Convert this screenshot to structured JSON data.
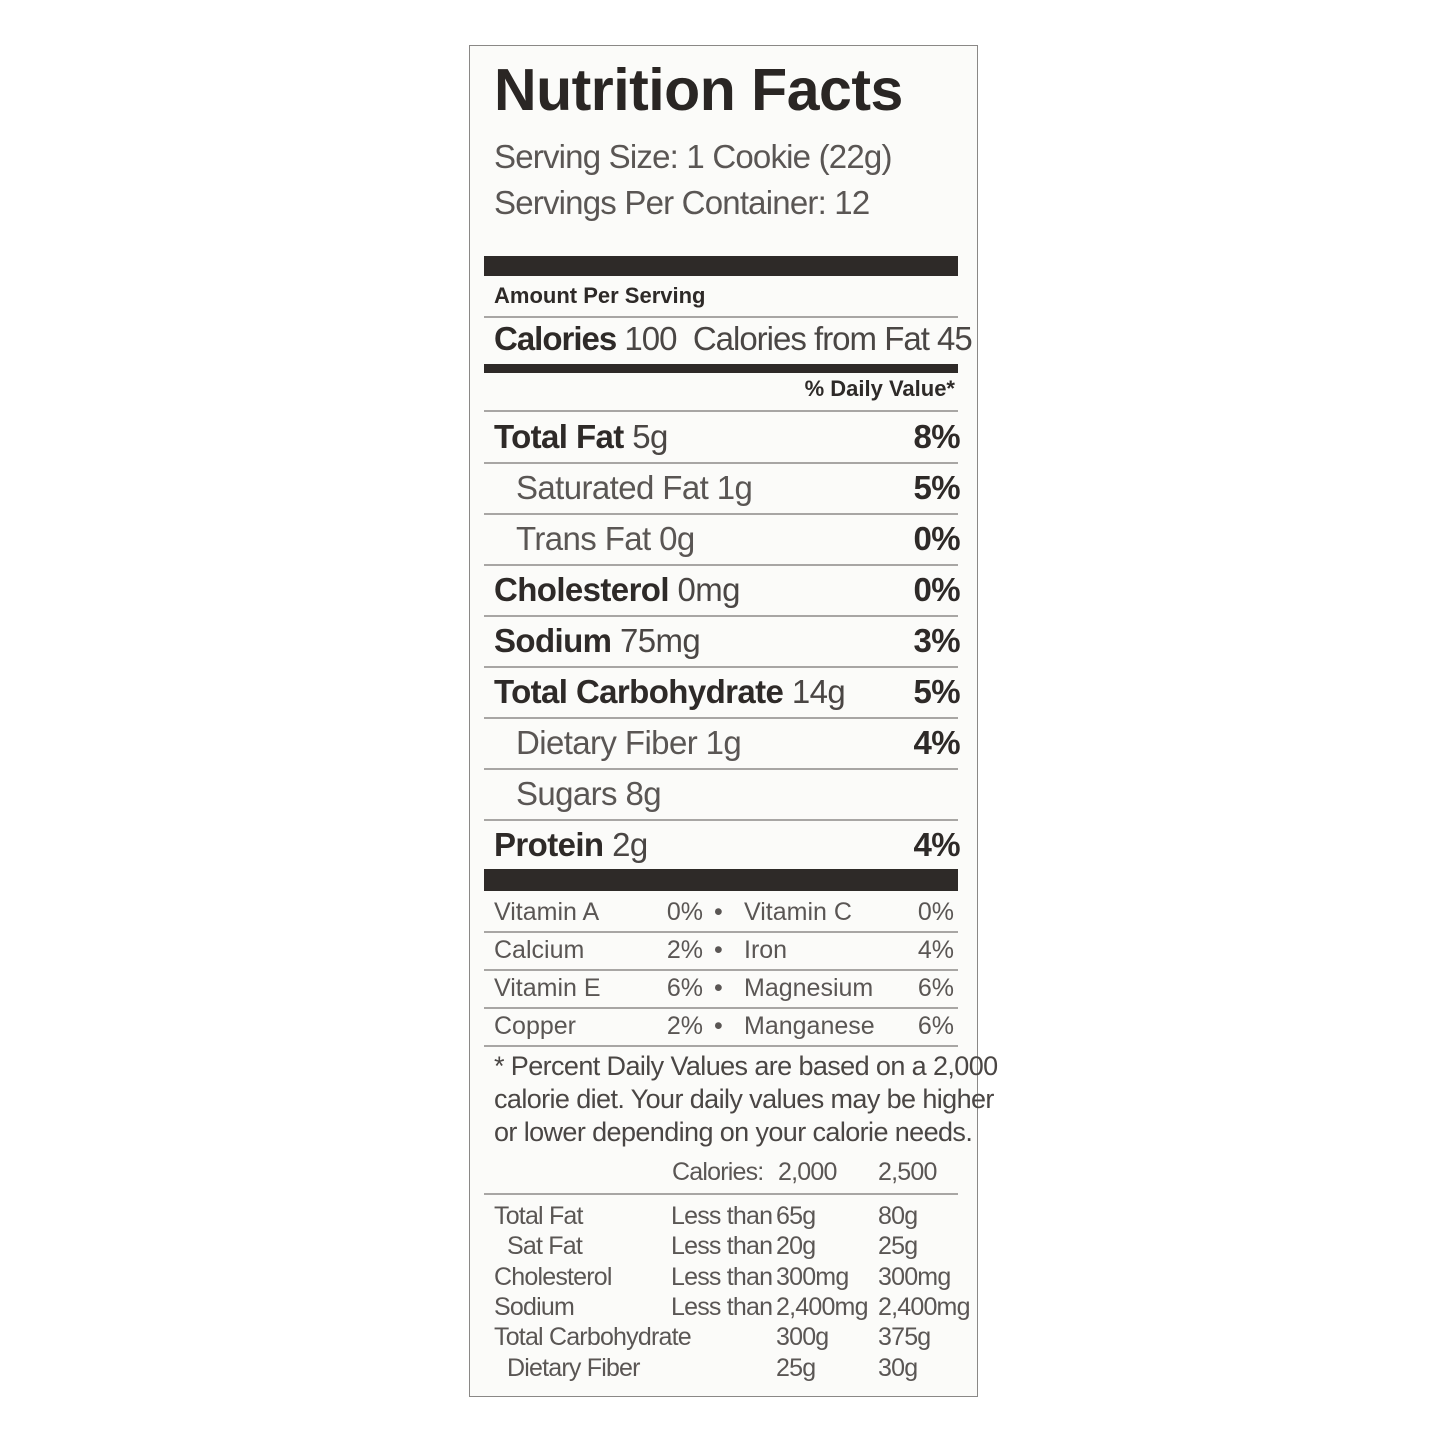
{
  "title": "Nutrition Facts",
  "serving_size": "Serving Size: 1 Cookie (22g)",
  "servings_per_container": "Servings Per Container: 12",
  "amount_per_serving": "Amount Per Serving",
  "calories": {
    "label": "Calories",
    "value": "100",
    "from_fat": "Calories from Fat 45"
  },
  "daily_value_header": "% Daily Value*",
  "nutrients": [
    {
      "name": "Total Fat",
      "amount": "5g",
      "dv": "8%",
      "bold": true
    },
    {
      "name": "Saturated Fat",
      "amount": "1g",
      "dv": "5%",
      "bold": false
    },
    {
      "name": "Trans Fat",
      "amount": "0g",
      "dv": "0%",
      "bold": false
    },
    {
      "name": "Cholesterol",
      "amount": "0mg",
      "dv": "0%",
      "bold": true
    },
    {
      "name": "Sodium",
      "amount": "75mg",
      "dv": "3%",
      "bold": true
    },
    {
      "name": "Total Carbohydrate",
      "amount": "14g",
      "dv": "5%",
      "bold": true
    },
    {
      "name": "Dietary Fiber",
      "amount": "1g",
      "dv": "4%",
      "bold": false
    },
    {
      "name": "Sugars",
      "amount": "8g",
      "dv": "",
      "bold": false
    },
    {
      "name": "Protein",
      "amount": "2g",
      "dv": "4%",
      "bold": true
    }
  ],
  "vitamins": [
    {
      "a": "Vitamin A",
      "a_pct": "0%",
      "b": "Vitamin C",
      "b_pct": "0%"
    },
    {
      "a": "Calcium",
      "a_pct": "2%",
      "b": "Iron",
      "b_pct": "4%"
    },
    {
      "a": "Vitamin E",
      "a_pct": "6%",
      "b": "Magnesium",
      "b_pct": "6%"
    },
    {
      "a": "Copper",
      "a_pct": "2%",
      "b": "Manganese",
      "b_pct": "6%"
    }
  ],
  "bullet": "•",
  "footnote": [
    "* Percent Daily Values are based on a 2,000",
    "calorie diet. Your daily values may be higher",
    "or lower depending on your calorie needs."
  ],
  "dv_table": {
    "header": {
      "label": "Calories:",
      "c1": "2,000",
      "c2": "2,500"
    },
    "rows": [
      {
        "name": "Total Fat",
        "qual": "Less than",
        "c1": "65g",
        "c2": "80g"
      },
      {
        "name": "Sat Fat",
        "qual": "Less than",
        "c1": "20g",
        "c2": "25g"
      },
      {
        "name": "Cholesterol",
        "qual": "Less than",
        "c1": "300mg",
        "c2": "300mg"
      },
      {
        "name": "Sodium",
        "qual": "Less than",
        "c1": "2,400mg",
        "c2": "2,400mg"
      },
      {
        "name": "Total Carbohydrate",
        "qual": "",
        "c1": "300g",
        "c2": "375g"
      },
      {
        "name": "Dietary Fiber",
        "qual": "",
        "c1": "25g",
        "c2": "30g"
      }
    ]
  }
}
